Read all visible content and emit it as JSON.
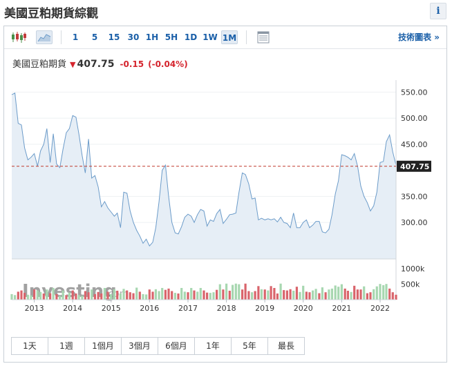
{
  "header": {
    "title": "美國豆粕期貨綜觀",
    "info_icon": "i"
  },
  "toolbar": {
    "intervals": [
      "1",
      "5",
      "15",
      "30",
      "1H",
      "5H",
      "1D",
      "1W",
      "1M"
    ],
    "selected_interval": "1M",
    "tech_chart_label": "技術圖表 »"
  },
  "quote": {
    "name": "美國豆粕期貨",
    "direction": "down",
    "price": "407.75",
    "change": "-0.15",
    "change_pct": "(-0.04%)"
  },
  "colors": {
    "accent": "#1a5fa8",
    "line": "#6b9bc9",
    "area": "#e6eef6",
    "down": "#d5252e",
    "vol_up": "#a7d7b0",
    "vol_down": "#d9646b",
    "ref_line": "#c0392b"
  },
  "chart_data": {
    "type": "area",
    "x": [
      "2012-06",
      "2012-07",
      "2012-08",
      "2012-09",
      "2012-10",
      "2012-11",
      "2012-12",
      "2013-01",
      "2013-02",
      "2013-03",
      "2013-04",
      "2013-05",
      "2013-06",
      "2013-07",
      "2013-08",
      "2013-09",
      "2013-10",
      "2013-11",
      "2013-12",
      "2014-01",
      "2014-02",
      "2014-03",
      "2014-04",
      "2014-05",
      "2014-06",
      "2014-07",
      "2014-08",
      "2014-09",
      "2014-10",
      "2014-11",
      "2014-12",
      "2015-01",
      "2015-02",
      "2015-03",
      "2015-04",
      "2015-05",
      "2015-06",
      "2015-07",
      "2015-08",
      "2015-09",
      "2015-10",
      "2015-11",
      "2015-12",
      "2016-01",
      "2016-02",
      "2016-03",
      "2016-04",
      "2016-05",
      "2016-06",
      "2016-07",
      "2016-08",
      "2016-09",
      "2016-10",
      "2016-11",
      "2016-12",
      "2017-01",
      "2017-02",
      "2017-03",
      "2017-04",
      "2017-05",
      "2017-06",
      "2017-07",
      "2017-08",
      "2017-09",
      "2017-10",
      "2017-11",
      "2017-12",
      "2018-01",
      "2018-02",
      "2018-03",
      "2018-04",
      "2018-05",
      "2018-06",
      "2018-07",
      "2018-08",
      "2018-09",
      "2018-10",
      "2018-11",
      "2018-12",
      "2019-01",
      "2019-02",
      "2019-03",
      "2019-04",
      "2019-05",
      "2019-06",
      "2019-07",
      "2019-08",
      "2019-09",
      "2019-10",
      "2019-11",
      "2019-12",
      "2020-01",
      "2020-02",
      "2020-03",
      "2020-04",
      "2020-05",
      "2020-06",
      "2020-07",
      "2020-08",
      "2020-09",
      "2020-10",
      "2020-11",
      "2020-12",
      "2021-01",
      "2021-02",
      "2021-03",
      "2021-04",
      "2021-05",
      "2021-06",
      "2021-07",
      "2021-08",
      "2021-09",
      "2021-10",
      "2021-11",
      "2021-12",
      "2022-01",
      "2022-02",
      "2022-03",
      "2022-04",
      "2022-05",
      "2022-06"
    ],
    "price": [
      545,
      548,
      490,
      487,
      443,
      420,
      425,
      432,
      408,
      437,
      450,
      480,
      415,
      470,
      412,
      405,
      440,
      472,
      480,
      505,
      502,
      470,
      428,
      395,
      460,
      385,
      390,
      368,
      330,
      340,
      328,
      320,
      312,
      318,
      290,
      358,
      356,
      322,
      300,
      285,
      274,
      260,
      268,
      255,
      262,
      290,
      340,
      400,
      410,
      350,
      300,
      280,
      278,
      292,
      310,
      316,
      312,
      300,
      315,
      325,
      322,
      293,
      305,
      302,
      317,
      325,
      298,
      306,
      315,
      316,
      318,
      358,
      395,
      392,
      374,
      345,
      347,
      305,
      308,
      305,
      307,
      305,
      307,
      301,
      310,
      300,
      298,
      290,
      318,
      290,
      290,
      300,
      305,
      290,
      295,
      302,
      302,
      282,
      280,
      287,
      315,
      355,
      380,
      430,
      428,
      425,
      420,
      432,
      408,
      370,
      350,
      338,
      322,
      332,
      358,
      415,
      417,
      455,
      468,
      435,
      410
    ],
    "volume_up": [
      true,
      true,
      false,
      false,
      false,
      true,
      true,
      false,
      true,
      true,
      false,
      true,
      false,
      true,
      false,
      true,
      true,
      false,
      true,
      false,
      false,
      true,
      true,
      false,
      false,
      true,
      false,
      false,
      false,
      true,
      false,
      true,
      true,
      false,
      true,
      true,
      false,
      false,
      false,
      true,
      false,
      true,
      true,
      false,
      false,
      true,
      true,
      true,
      false,
      false,
      false,
      true,
      false,
      true,
      true,
      false,
      true,
      false,
      true,
      true,
      false,
      false,
      true,
      true,
      false,
      true,
      false,
      true,
      false,
      true,
      true,
      true,
      false,
      false,
      false,
      true,
      false,
      false,
      true,
      false,
      true,
      false,
      false,
      false,
      true,
      false,
      false,
      false,
      true,
      false,
      true,
      true,
      false,
      false,
      true,
      true,
      false,
      true,
      false,
      true,
      true,
      true,
      true,
      true,
      false,
      false,
      true,
      false,
      false,
      false,
      true,
      false,
      false,
      true,
      true,
      true,
      true,
      true,
      false,
      false,
      false
    ],
    "volume": [
      180,
      150,
      260,
      300,
      220,
      160,
      140,
      330,
      300,
      250,
      200,
      330,
      210,
      380,
      180,
      120,
      300,
      150,
      230,
      300,
      200,
      150,
      130,
      280,
      240,
      330,
      180,
      250,
      200,
      380,
      260,
      180,
      340,
      290,
      200,
      350,
      300,
      240,
      210,
      390,
      260,
      180,
      170,
      330,
      260,
      340,
      280,
      380,
      320,
      360,
      280,
      220,
      200,
      380,
      260,
      240,
      380,
      300,
      260,
      380,
      300,
      230,
      220,
      240,
      320,
      500,
      330,
      520,
      290,
      480,
      520,
      500,
      330,
      520,
      280,
      240,
      280,
      440,
      340,
      330,
      300,
      440,
      380,
      200,
      520,
      310,
      300,
      340,
      290,
      420,
      250,
      450,
      260,
      240,
      300,
      350,
      210,
      400,
      240,
      330,
      360,
      460,
      420,
      500,
      360,
      290,
      250,
      450,
      330,
      330,
      430,
      210,
      240,
      340,
      430,
      510,
      470,
      510,
      360,
      240,
      160
    ],
    "x_ticks": [
      "2013",
      "2014",
      "2015",
      "2016",
      "2017",
      "2018",
      "2019",
      "2020",
      "2021",
      "2022"
    ],
    "y_ticks": [
      300,
      350,
      450,
      500,
      550
    ],
    "y_tick_labels": [
      "300.00",
      "350.00",
      "450.00",
      "500.00",
      "550.00"
    ],
    "ylim": [
      230,
      565
    ],
    "current_value": 407.75,
    "current_label": "407.75",
    "volume_ticks": [
      "1000k",
      "500k"
    ],
    "volume_tick_values": [
      1000,
      500
    ],
    "volume_max": 1250,
    "grid": true
  },
  "watermark": {
    "text_main": "Investing",
    "text_suffix": ".com"
  },
  "ranges": [
    "1天",
    "1週",
    "1個月",
    "3個月",
    "6個月",
    "1年",
    "5年",
    "最長"
  ]
}
